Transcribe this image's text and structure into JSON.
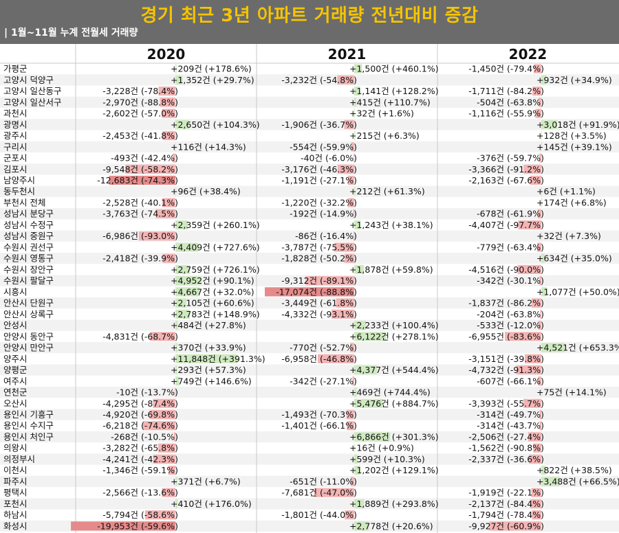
{
  "title": "경기 최근 3년 아파트 거래량 전년대비 증감",
  "subtitle": "| 1월~11월 누계 전월세 거래량",
  "colors": {
    "positive": "#cfe9c0",
    "negative": "#f3b4b4",
    "negative_strong": "#e58a8a",
    "header_bg": "#6b6b6b",
    "title": "#f5c400"
  },
  "chart_data": {
    "type": "bar",
    "unit": "건",
    "years": [
      "2020",
      "2021",
      "2022"
    ],
    "rows": [
      {
        "region": "가평군",
        "vals": [
          [
            209,
            178.6
          ],
          [
            1500,
            460.1
          ],
          [
            -1450,
            -79.4
          ]
        ]
      },
      {
        "region": "고양시 덕양구",
        "vals": [
          [
            1352,
            29.7
          ],
          [
            -3232,
            -54.8
          ],
          [
            932,
            34.9
          ]
        ]
      },
      {
        "region": "고양시 일산동구",
        "vals": [
          [
            -3228,
            -78.4
          ],
          [
            1141,
            128.2
          ],
          [
            -1711,
            -84.2
          ]
        ]
      },
      {
        "region": "고양시 일산서구",
        "vals": [
          [
            -2970,
            -88.8
          ],
          [
            415,
            110.7
          ],
          [
            -504,
            -63.8
          ]
        ]
      },
      {
        "region": "과천시",
        "vals": [
          [
            -2602,
            -57.0
          ],
          [
            32,
            1.6
          ],
          [
            -1116,
            -55.9
          ]
        ]
      },
      {
        "region": "광명시",
        "vals": [
          [
            2650,
            104.3
          ],
          [
            -1906,
            -36.7
          ],
          [
            3018,
            91.9
          ]
        ]
      },
      {
        "region": "광주시",
        "vals": [
          [
            -2453,
            -41.8
          ],
          [
            215,
            6.3
          ],
          [
            128,
            3.5
          ]
        ]
      },
      {
        "region": "구리시",
        "vals": [
          [
            116,
            14.3
          ],
          [
            -554,
            -59.9
          ],
          [
            145,
            39.1
          ]
        ]
      },
      {
        "region": "군포시",
        "vals": [
          [
            -493,
            -42.4
          ],
          [
            -40,
            -6.0
          ],
          [
            -376,
            -59.7
          ]
        ]
      },
      {
        "region": "김포시",
        "vals": [
          [
            -9548,
            -58.2
          ],
          [
            -3176,
            -46.3
          ],
          [
            -3366,
            -91.2
          ]
        ]
      },
      {
        "region": "남양주시",
        "vals": [
          [
            -12683,
            -74.3
          ],
          [
            -1191,
            -27.1
          ],
          [
            -2163,
            -67.6
          ]
        ]
      },
      {
        "region": "동두천시",
        "vals": [
          [
            96,
            38.4
          ],
          [
            212,
            61.3
          ],
          [
            6,
            1.1
          ]
        ]
      },
      {
        "region": "부천시 전체",
        "vals": [
          [
            -2528,
            -40.1
          ],
          [
            -1220,
            -32.2
          ],
          [
            174,
            6.8
          ]
        ]
      },
      {
        "region": "성남시 분당구",
        "vals": [
          [
            -3763,
            -74.5
          ],
          [
            -192,
            -14.9
          ],
          [
            -678,
            -61.9
          ]
        ]
      },
      {
        "region": "성남시 수정구",
        "vals": [
          [
            2359,
            260.1
          ],
          [
            1243,
            38.1
          ],
          [
            -4407,
            -97.7
          ]
        ]
      },
      {
        "region": "성남시 중원구",
        "vals": [
          [
            -6986,
            -93.0
          ],
          [
            -86,
            -16.4
          ],
          [
            32,
            7.3
          ]
        ]
      },
      {
        "region": "수원시 권선구",
        "vals": [
          [
            4409,
            727.6
          ],
          [
            -3787,
            -75.5
          ],
          [
            -779,
            -63.4
          ]
        ]
      },
      {
        "region": "수원시 영통구",
        "vals": [
          [
            -2418,
            -39.9
          ],
          [
            -1828,
            -50.2
          ],
          [
            634,
            35.0
          ]
        ]
      },
      {
        "region": "수원시 장안구",
        "vals": [
          [
            2759,
            726.1
          ],
          [
            1878,
            59.8
          ],
          [
            -4516,
            -90.0
          ]
        ]
      },
      {
        "region": "수원시 팔달구",
        "vals": [
          [
            4952,
            90.1
          ],
          [
            -9312,
            -89.1
          ],
          [
            -342,
            -30.1
          ]
        ]
      },
      {
        "region": "시흥시",
        "vals": [
          [
            4667,
            32.0
          ],
          [
            -17074,
            -88.8
          ],
          [
            1077,
            50.0
          ]
        ]
      },
      {
        "region": "안산시 단원구",
        "vals": [
          [
            2105,
            60.6
          ],
          [
            -3449,
            -61.8
          ],
          [
            -1837,
            -86.2
          ]
        ]
      },
      {
        "region": "안산시 상록구",
        "vals": [
          [
            2783,
            148.9
          ],
          [
            -4332,
            -93.1
          ],
          [
            -204,
            -63.8
          ]
        ]
      },
      {
        "region": "안성시",
        "vals": [
          [
            484,
            27.8
          ],
          [
            2233,
            100.4
          ],
          [
            -533,
            -12.0
          ]
        ]
      },
      {
        "region": "안양시 동안구",
        "vals": [
          [
            -4831,
            -68.7
          ],
          [
            6122,
            278.1
          ],
          [
            -6955,
            -83.6
          ]
        ]
      },
      {
        "region": "안양시 만안구",
        "vals": [
          [
            370,
            33.9
          ],
          [
            -770,
            -52.7
          ],
          [
            4521,
            653.3
          ]
        ]
      },
      {
        "region": "양주시",
        "vals": [
          [
            11848,
            391.3
          ],
          [
            -6958,
            -46.8
          ],
          [
            -3151,
            -39.8
          ]
        ]
      },
      {
        "region": "양평군",
        "vals": [
          [
            293,
            57.3
          ],
          [
            4377,
            544.4
          ],
          [
            -4732,
            -91.3
          ]
        ]
      },
      {
        "region": "여주시",
        "vals": [
          [
            749,
            146.6
          ],
          [
            -342,
            -27.1
          ],
          [
            -607,
            -66.1
          ]
        ]
      },
      {
        "region": "연천군",
        "vals": [
          [
            -10,
            -13.7
          ],
          [
            469,
            744.4
          ],
          [
            75,
            14.1
          ]
        ]
      },
      {
        "region": "오산시",
        "vals": [
          [
            -4295,
            -87.4
          ],
          [
            5476,
            884.7
          ],
          [
            -3393,
            -55.7
          ]
        ]
      },
      {
        "region": "용인시 기흥구",
        "vals": [
          [
            -4920,
            -69.8
          ],
          [
            -1493,
            -70.3
          ],
          [
            -314,
            -49.7
          ]
        ]
      },
      {
        "region": "용인시 수지구",
        "vals": [
          [
            -6218,
            -74.6
          ],
          [
            -1401,
            -66.1
          ],
          [
            -314,
            -43.7
          ]
        ]
      },
      {
        "region": "용인시 처인구",
        "vals": [
          [
            -268,
            -10.5
          ],
          [
            6866,
            301.3
          ],
          [
            -2506,
            -27.4
          ]
        ]
      },
      {
        "region": "의왕시",
        "vals": [
          [
            -3282,
            -65.8
          ],
          [
            16,
            0.9
          ],
          [
            -1562,
            -90.8
          ]
        ]
      },
      {
        "region": "의정부시",
        "vals": [
          [
            -4241,
            -42.3
          ],
          [
            599,
            10.3
          ],
          [
            -2337,
            -36.6
          ]
        ]
      },
      {
        "region": "이천시",
        "vals": [
          [
            -1346,
            -59.1
          ],
          [
            1202,
            129.1
          ],
          [
            822,
            38.5
          ]
        ]
      },
      {
        "region": "파주시",
        "vals": [
          [
            371,
            6.7
          ],
          [
            -651,
            -11.0
          ],
          [
            3488,
            66.5
          ]
        ]
      },
      {
        "region": "평택시",
        "vals": [
          [
            -2566,
            -13.6
          ],
          [
            -7681,
            -47.0
          ],
          [
            -1919,
            -22.1
          ]
        ]
      },
      {
        "region": "포천시",
        "vals": [
          [
            410,
            176.0
          ],
          [
            1889,
            293.8
          ],
          [
            -2137,
            -84.4
          ]
        ]
      },
      {
        "region": "하남시",
        "vals": [
          [
            -5794,
            -58.6
          ],
          [
            -1801,
            -44.0
          ],
          [
            -1794,
            -78.4
          ]
        ]
      },
      {
        "region": "화성시",
        "vals": [
          [
            -19953,
            -59.6
          ],
          [
            2778,
            20.6
          ],
          [
            -9927,
            -60.9
          ]
        ]
      }
    ]
  }
}
